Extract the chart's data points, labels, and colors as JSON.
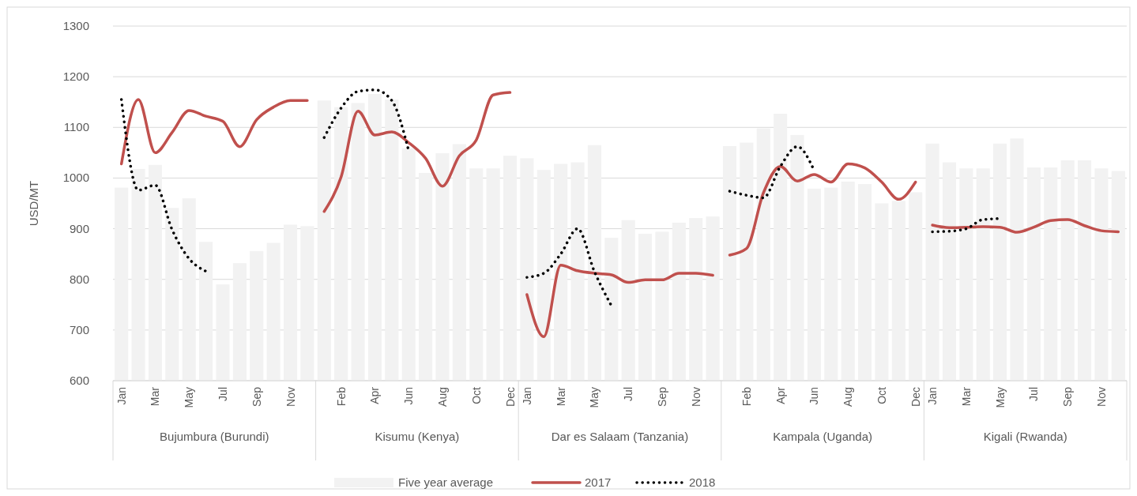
{
  "chart_data": {
    "type": "bar",
    "ylabel": "USD/MT",
    "ylim": [
      600,
      1300
    ],
    "yticks": [
      600,
      700,
      800,
      900,
      1000,
      1100,
      1200,
      1300
    ],
    "grid": "y",
    "legend": "bottom",
    "categories": [
      "Jan",
      null,
      "Mar",
      null,
      "May",
      null,
      "Jul",
      null,
      "Sep",
      null,
      "Nov",
      null,
      null,
      "Feb",
      null,
      "Apr",
      null,
      "Jun",
      null,
      "Aug",
      null,
      "Oct",
      null,
      "Dec",
      "Jan",
      null,
      "Mar",
      null,
      "May",
      null,
      "Jul",
      null,
      "Sep",
      null,
      "Nov",
      null,
      null,
      "Feb",
      null,
      "Apr",
      null,
      "Jun",
      null,
      "Aug",
      null,
      "Oct",
      null,
      "Dec",
      "Jan",
      null,
      "Mar",
      null,
      "May",
      null,
      "Jul",
      null,
      "Sep",
      null,
      "Nov",
      null
    ],
    "annotations": [
      "Bujumbura (Burundi)",
      "Kisumu (Kenya)",
      "Dar es Salaam (Tanzania)",
      "Kampala (Uganda)",
      "Kigali (Rwanda)"
    ],
    "series": [
      {
        "name": "Five year average",
        "color": "#f2f2f2",
        "values": [
          981,
          1018,
          1026,
          941,
          960,
          874,
          790,
          832,
          856,
          872,
          908,
          905,
          1153,
          1140,
          1148,
          1166,
          1155,
          1059,
          1010,
          1049,
          1067,
          1019,
          1019,
          1044,
          1039,
          1016,
          1028,
          1031,
          1065,
          882,
          917,
          890,
          894,
          912,
          921,
          924,
          1063,
          1070,
          1098,
          1127,
          1085,
          979,
          981,
          993,
          988,
          950,
          955,
          972,
          1068,
          1031,
          1019,
          1019,
          1068,
          1078,
          1021,
          1021,
          1035,
          1035,
          1019,
          1014
        ]
      },
      {
        "name": "2017",
        "type": "line",
        "color": "#c0504d",
        "line_style": "solid",
        "values": [
          1028,
          1155,
          1050,
          1090,
          1133,
          1122,
          1112,
          1062,
          1115,
          1140,
          1153,
          1153,
          934,
          1002,
          1132,
          1085,
          1091,
          1070,
          1039,
          984,
          1044,
          1075,
          1164,
          1169,
          770,
          687,
          828,
          817,
          812,
          809,
          794,
          799,
          799,
          812,
          812,
          808,
          848,
          861,
          971,
          1023,
          994,
          1007,
          992,
          1028,
          1020,
          992,
          958,
          992,
          907,
          902,
          903,
          904,
          903,
          893,
          903,
          916,
          918,
          906,
          896,
          894
        ]
      },
      {
        "name": "2018",
        "type": "line",
        "color": "#000000",
        "line_style": "dotted",
        "values": [
          1155,
          976,
          986,
          898,
          841,
          816,
          null,
          null,
          null,
          null,
          null,
          null,
          1080,
          1138,
          1171,
          1174,
          1153,
          1054,
          null,
          null,
          null,
          null,
          null,
          null,
          804,
          812,
          850,
          900,
          815,
          748,
          null,
          null,
          null,
          null,
          null,
          null,
          974,
          966,
          961,
          1023,
          1062,
          1015,
          null,
          null,
          null,
          null,
          null,
          null,
          894,
          895,
          900,
          918,
          920,
          null,
          null,
          null,
          null,
          null,
          null,
          null
        ]
      }
    ]
  }
}
